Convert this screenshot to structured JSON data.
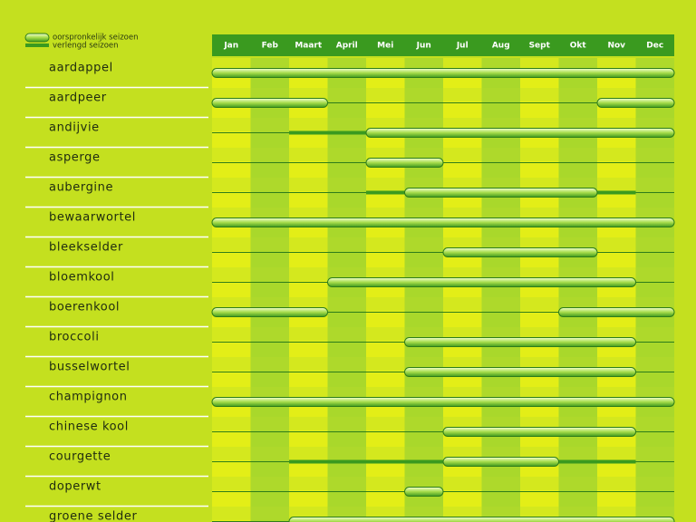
{
  "legend": {
    "original": "oorspronkelijk seizoen",
    "extended": "verlengd seizoen"
  },
  "months": [
    "Jan",
    "Feb",
    "Maart",
    "April",
    "Mei",
    "Jun",
    "Jul",
    "Aug",
    "Sept",
    "Okt",
    "Nov",
    "Dec"
  ],
  "rows": [
    {
      "name": "aardappel",
      "season": [
        [
          0,
          12
        ]
      ]
    },
    {
      "name": "aardpeer",
      "season": [
        [
          0,
          3
        ],
        [
          10,
          12
        ]
      ]
    },
    {
      "name": "andijvie",
      "season": [
        [
          4,
          12
        ]
      ],
      "extended": [
        [
          2,
          4
        ]
      ]
    },
    {
      "name": "asperge",
      "season": [
        [
          4,
          6
        ]
      ]
    },
    {
      "name": "aubergine",
      "season": [
        [
          5,
          10
        ]
      ],
      "extended": [
        [
          4,
          5
        ],
        [
          10,
          11
        ]
      ]
    },
    {
      "name": "bewaarwortel",
      "season": [
        [
          0,
          12
        ]
      ]
    },
    {
      "name": "bleekselder",
      "season": [
        [
          6,
          10
        ]
      ]
    },
    {
      "name": "bloemkool",
      "season": [
        [
          3,
          11
        ]
      ]
    },
    {
      "name": "boerenkool",
      "season": [
        [
          0,
          3
        ],
        [
          9,
          12
        ]
      ]
    },
    {
      "name": "broccoli",
      "season": [
        [
          5,
          11
        ]
      ]
    },
    {
      "name": "busselwortel",
      "season": [
        [
          5,
          11
        ]
      ]
    },
    {
      "name": "champignon",
      "season": [
        [
          0,
          12
        ]
      ]
    },
    {
      "name": "chinese kool",
      "season": [
        [
          6,
          11
        ]
      ]
    },
    {
      "name": "courgette",
      "season": [
        [
          6,
          9
        ]
      ],
      "extended": [
        [
          2,
          6
        ],
        [
          9,
          11
        ]
      ]
    },
    {
      "name": "doperwt",
      "season": [
        [
          5,
          6
        ]
      ]
    },
    {
      "name": "groene selder",
      "season": [
        [
          2,
          12
        ]
      ]
    }
  ]
}
